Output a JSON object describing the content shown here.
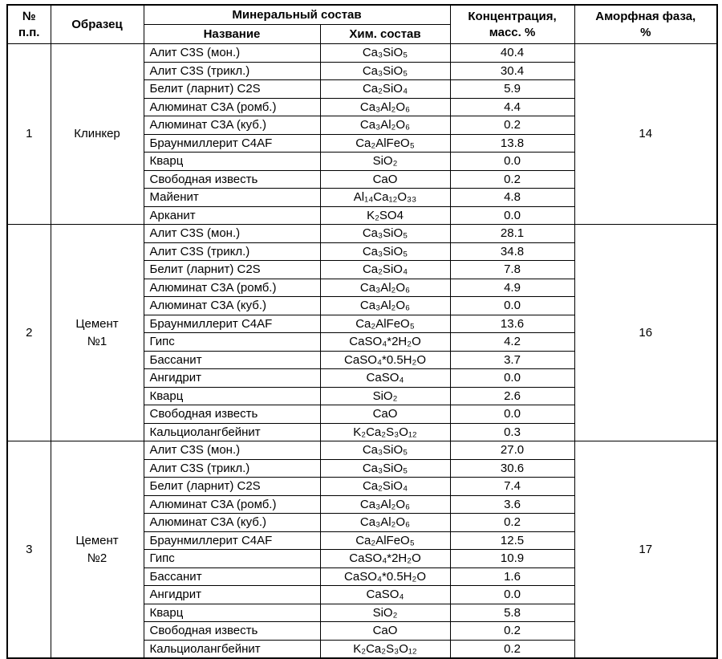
{
  "page": {
    "background": "#ffffff",
    "border_color": "#000000"
  },
  "table": {
    "header": {
      "num": "№\nп.п.",
      "sample": "Образец",
      "mineral_group": "Минеральный состав",
      "name": "Название",
      "chem": "Хим. состав",
      "concentration": "Концентрация,\nмасс. %",
      "amorphous": "Аморфная фаза,\n%"
    },
    "sections": [
      {
        "num": "1",
        "sample": "Клинкер",
        "amorphous": "14",
        "rows": [
          {
            "name": "Алит C3S (мон.)",
            "formula": "Ca₃SiO₅",
            "concentration": "40.4"
          },
          {
            "name": "Алит C3S (трикл.)",
            "formula": "Ca₃SiO₅",
            "concentration": "30.4"
          },
          {
            "name": "Белит (ларнит) C2S",
            "formula": "Ca₂SiO₄",
            "concentration": "5.9"
          },
          {
            "name": "Алюминат C3A (ромб.)",
            "formula": "Ca₃Al₂O₆",
            "concentration": "4.4"
          },
          {
            "name": "Алюминат C3A (куб.)",
            "formula": "Ca₃Al₂O₆",
            "concentration": "0.2"
          },
          {
            "name": "Браунмиллерит C4AF",
            "formula": "Ca₂AlFeO₅",
            "concentration": "13.8"
          },
          {
            "name": "Кварц",
            "formula": "SiO₂",
            "concentration": "0.0"
          },
          {
            "name": "Свободная известь",
            "formula": "CaO",
            "concentration": "0.2"
          },
          {
            "name": "Майенит",
            "formula": "Al₁₄Ca₁₂O₃₃",
            "concentration": "4.8"
          },
          {
            "name": "Арканит",
            "formula": "K₂SO4",
            "concentration": "0.0"
          }
        ]
      },
      {
        "num": "2",
        "sample": "Цемент\n№1",
        "amorphous": "16",
        "rows": [
          {
            "name": "Алит C3S (мон.)",
            "formula": "Ca₃SiO₅",
            "concentration": "28.1"
          },
          {
            "name": "Алит C3S (трикл.)",
            "formula": "Ca₃SiO₅",
            "concentration": "34.8"
          },
          {
            "name": "Белит (ларнит) C2S",
            "formula": "Ca₂SiO₄",
            "concentration": "7.8"
          },
          {
            "name": "Алюминат C3A (ромб.)",
            "formula": "Ca₃Al₂O₆",
            "concentration": "4.9"
          },
          {
            "name": "Алюминат C3A (куб.)",
            "formula": "Ca₃Al₂O₆",
            "concentration": "0.0"
          },
          {
            "name": "Браунмиллерит C4AF",
            "formula": "Ca₂AlFeO₅",
            "concentration": "13.6"
          },
          {
            "name": "Гипс",
            "formula": "CaSO₄*2H₂O",
            "concentration": "4.2"
          },
          {
            "name": "Бассанит",
            "formula": "CaSO₄*0.5H₂O",
            "concentration": "3.7"
          },
          {
            "name": "Ангидрит",
            "formula": "CaSO₄",
            "concentration": "0.0"
          },
          {
            "name": "Кварц",
            "formula": "SiO₂",
            "concentration": "2.6"
          },
          {
            "name": "Свободная известь",
            "formula": "CaO",
            "concentration": "0.0"
          },
          {
            "name": "Кальциолангбейнит",
            "formula": "K₂Ca₂S₃O₁₂",
            "concentration": "0.3"
          }
        ]
      },
      {
        "num": "3",
        "sample": "Цемент\n№2",
        "amorphous": "17",
        "rows": [
          {
            "name": "Алит C3S (мон.)",
            "formula": "Ca₃SiO₅",
            "concentration": "27.0"
          },
          {
            "name": "Алит C3S (трикл.)",
            "formula": "Ca₃SiO₅",
            "concentration": "30.6"
          },
          {
            "name": "Белит (ларнит) C2S",
            "formula": "Ca₂SiO₄",
            "concentration": "7.4"
          },
          {
            "name": "Алюминат C3A (ромб.)",
            "formula": "Ca₃Al₂O₆",
            "concentration": "3.6"
          },
          {
            "name": "Алюминат C3A (куб.)",
            "formula": "Ca₃Al₂O₆",
            "concentration": "0.2"
          },
          {
            "name": "Браунмиллерит C4AF",
            "formula": "Ca₂AlFeO₅",
            "concentration": "12.5"
          },
          {
            "name": "Гипс",
            "formula": "CaSO₄*2H₂O",
            "concentration": "10.9"
          },
          {
            "name": "Бассанит",
            "formula": "CaSO₄*0.5H₂O",
            "concentration": "1.6"
          },
          {
            "name": "Ангидрит",
            "formula": "CaSO₄",
            "concentration": "0.0"
          },
          {
            "name": "Кварц",
            "formula": "SiO₂",
            "concentration": "5.8"
          },
          {
            "name": "Свободная известь",
            "formula": "CaO",
            "concentration": "0.2"
          },
          {
            "name": "Кальциолангбейнит",
            "formula": "K₂Ca₂S₃O₁₂",
            "concentration": "0.2"
          }
        ]
      }
    ]
  }
}
